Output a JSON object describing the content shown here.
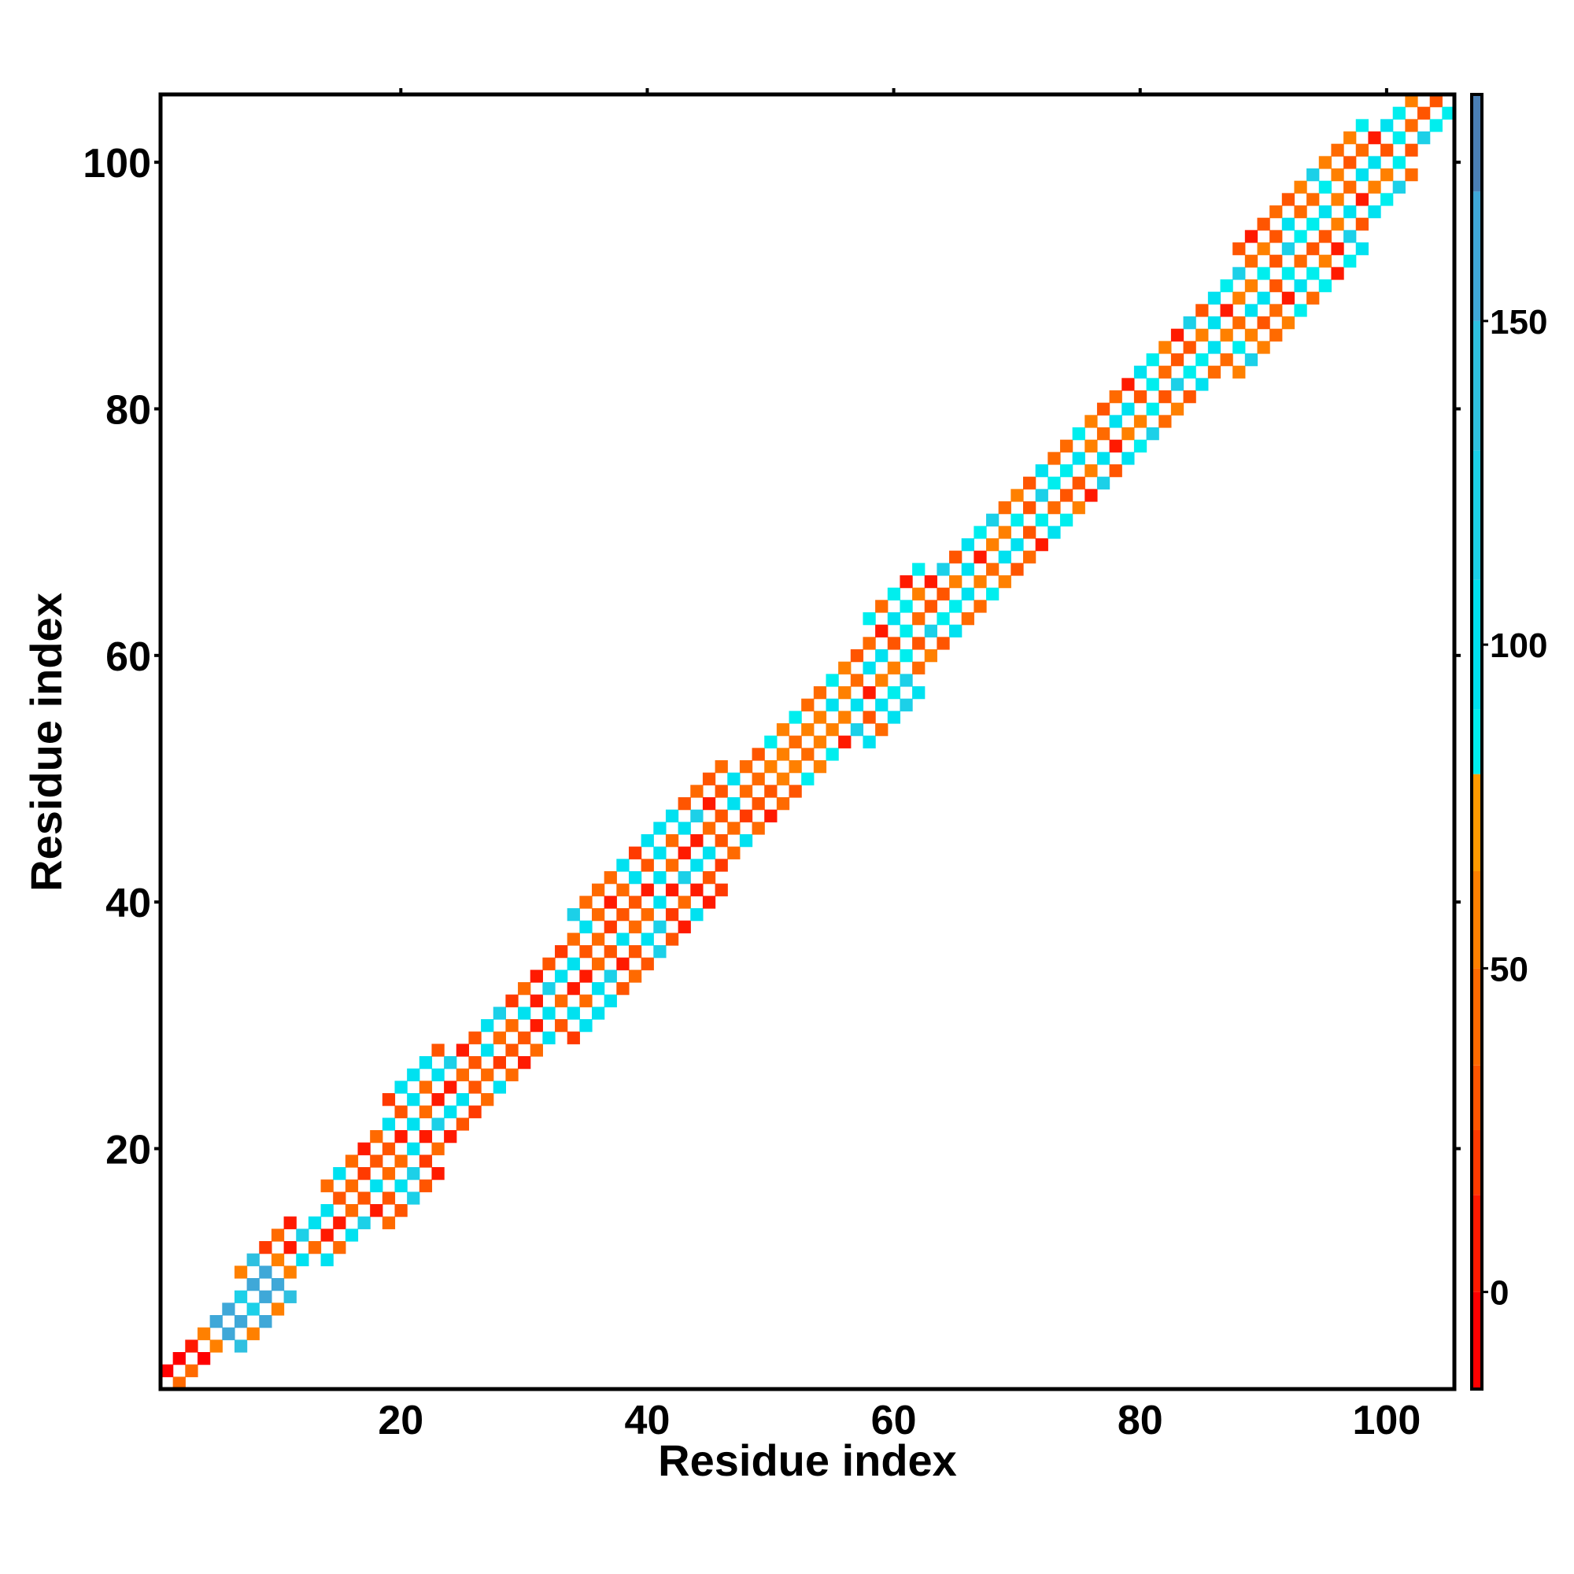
{
  "chart_data": {
    "type": "heatmap",
    "title": "",
    "xlabel": "Residue index",
    "ylabel": "Residue index",
    "xlim": [
      0.5,
      105.5
    ],
    "ylim": [
      0.5,
      105.5
    ],
    "x_ticks": [
      20,
      40,
      60,
      80,
      100
    ],
    "y_ticks": [
      20,
      40,
      60,
      80,
      100
    ],
    "x_tick_labels": [
      "20",
      "40",
      "60",
      "80",
      "100"
    ],
    "y_tick_labels": [
      "20",
      "40",
      "60",
      "80",
      "100"
    ],
    "n_residues": 105,
    "grid": false,
    "legend": "none",
    "colorbar": {
      "position": "right",
      "range": [
        -15,
        185
      ],
      "ticks": [
        0,
        50,
        100,
        150
      ],
      "tick_labels": [
        "0",
        "50",
        "100",
        "150"
      ],
      "bands": [
        {
          "from": -15,
          "to": 0,
          "color": "#ff0000"
        },
        {
          "from": 0,
          "to": 15,
          "color": "#ff1a00"
        },
        {
          "from": 15,
          "to": 25,
          "color": "#ff3a00"
        },
        {
          "from": 25,
          "to": 35,
          "color": "#ff5500"
        },
        {
          "from": 35,
          "to": 50,
          "color": "#ff6a00"
        },
        {
          "from": 50,
          "to": 65,
          "color": "#ff8000"
        },
        {
          "from": 65,
          "to": 80,
          "color": "#ff9a00"
        },
        {
          "from": 80,
          "to": 90,
          "color": "#00eeee"
        },
        {
          "from": 90,
          "to": 110,
          "color": "#00e1f0"
        },
        {
          "from": 110,
          "to": 130,
          "color": "#1cd0e8"
        },
        {
          "from": 130,
          "to": 150,
          "color": "#2ec0e0"
        },
        {
          "from": 150,
          "to": 170,
          "color": "#3fa8d8"
        },
        {
          "from": 170,
          "to": 185,
          "color": "#4a7fb5"
        },
        {
          "from": 185,
          "to": 190,
          "color": "#ffffff"
        }
      ]
    },
    "band_halfwidth_profile": [
      [
        1,
        1
      ],
      [
        4,
        2
      ],
      [
        6,
        2
      ],
      [
        8,
        4
      ],
      [
        10,
        4
      ],
      [
        12,
        2
      ],
      [
        15,
        3
      ],
      [
        17,
        4
      ],
      [
        20,
        5
      ],
      [
        23,
        5
      ],
      [
        26,
        3
      ],
      [
        29,
        3
      ],
      [
        32,
        4
      ],
      [
        35,
        5
      ],
      [
        38,
        6
      ],
      [
        41,
        6
      ],
      [
        44,
        6
      ],
      [
        47,
        4
      ],
      [
        50,
        3
      ],
      [
        53,
        3
      ],
      [
        56,
        4
      ],
      [
        59,
        5
      ],
      [
        62,
        5
      ],
      [
        65,
        3
      ],
      [
        68,
        3
      ],
      [
        71,
        3
      ],
      [
        74,
        3
      ],
      [
        77,
        3
      ],
      [
        80,
        3
      ],
      [
        83,
        3
      ],
      [
        86,
        4
      ],
      [
        89,
        5
      ],
      [
        92,
        6
      ],
      [
        95,
        6
      ],
      [
        98,
        5
      ],
      [
        101,
        3
      ],
      [
        104,
        2
      ],
      [
        105,
        1
      ]
    ],
    "segment_colors": [
      {
        "from": 1,
        "to": 4,
        "colors": [
          "#ff0000",
          "#ff6a00",
          "#ff1a00"
        ]
      },
      {
        "from": 5,
        "to": 11,
        "colors": [
          "#2ec0e0",
          "#3fa8d8",
          "#1cd0e8",
          "#ff8000"
        ]
      },
      {
        "from": 12,
        "to": 50,
        "colors": [
          "#ff6a00",
          "#ff5500",
          "#00e1f0",
          "#ff1a00",
          "#1cd0e8",
          "#ff6a00",
          "#ff3a00",
          "#00e1f0"
        ]
      },
      {
        "from": 51,
        "to": 55,
        "colors": [
          "#ff6a00",
          "#00eeee",
          "#ff5500",
          "#ff8000"
        ]
      },
      {
        "from": 56,
        "to": 105,
        "colors": [
          "#ff6a00",
          "#00e1f0",
          "#ff1a00",
          "#ff5500",
          "#1cd0e8",
          "#ff8000",
          "#ff6a00",
          "#00eeee"
        ]
      }
    ]
  }
}
